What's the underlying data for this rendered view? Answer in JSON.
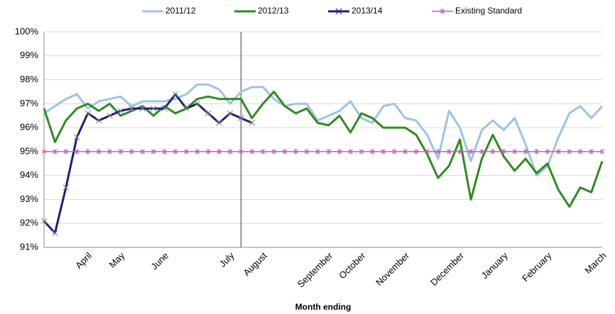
{
  "chart_data": {
    "type": "line",
    "x_label": "Month ending",
    "categories": [
      null,
      null,
      null,
      null,
      "April",
      null,
      null,
      "May",
      null,
      null,
      null,
      "June",
      null,
      null,
      null,
      null,
      null,
      "July",
      null,
      null,
      "August",
      null,
      null,
      null,
      null,
      null,
      "September",
      null,
      null,
      "October",
      null,
      null,
      null,
      "November",
      null,
      null,
      null,
      null,
      "December",
      null,
      null,
      null,
      "January",
      null,
      null,
      null,
      "February",
      null,
      null,
      null,
      null,
      "March"
    ],
    "ylim": [
      91,
      100
    ],
    "yticks": [
      {
        "value": 91,
        "label": "91%"
      },
      {
        "value": 92,
        "label": "92%"
      },
      {
        "value": 93,
        "label": "93%"
      },
      {
        "value": 94,
        "label": "94%"
      },
      {
        "value": 95,
        "label": "95%"
      },
      {
        "value": 96,
        "label": "96%"
      },
      {
        "value": 97,
        "label": "97%"
      },
      {
        "value": 98,
        "label": "98%"
      },
      {
        "value": 99,
        "label": "99%"
      },
      {
        "value": 100,
        "label": "100%"
      }
    ],
    "grid": true,
    "legend": "top",
    "series": [
      {
        "name": "2011/12",
        "color": "#9dc3e6",
        "marker": "none",
        "values": [
          96.6,
          96.9,
          97.2,
          97.4,
          96.8,
          97.1,
          97.2,
          97.3,
          96.9,
          97.1,
          97.1,
          97.1,
          97.2,
          97.4,
          97.8,
          97.8,
          97.6,
          97.0,
          97.5,
          97.7,
          97.7,
          97.2,
          96.9,
          97.0,
          97.0,
          96.3,
          96.5,
          96.7,
          97.1,
          96.4,
          96.2,
          96.9,
          97.0,
          96.4,
          96.3,
          95.7,
          94.7,
          96.7,
          96.0,
          94.6,
          95.9,
          96.3,
          95.9,
          96.4,
          95.3,
          94.0,
          94.4,
          95.6,
          96.6,
          96.9,
          96.4,
          96.9
        ]
      },
      {
        "name": "2012/13",
        "color": "#2e8b1f",
        "marker": "none",
        "values": [
          96.8,
          95.4,
          96.3,
          96.8,
          97.0,
          96.7,
          97.0,
          96.5,
          96.7,
          96.9,
          96.5,
          96.9,
          96.6,
          96.8,
          97.2,
          97.3,
          97.2,
          97.2,
          97.2,
          96.4,
          97.0,
          97.5,
          96.9,
          96.6,
          96.8,
          96.2,
          96.1,
          96.5,
          95.8,
          96.6,
          96.4,
          96.0,
          96.0,
          96.0,
          95.7,
          94.9,
          93.9,
          94.4,
          95.5,
          93.0,
          94.7,
          95.7,
          94.8,
          94.2,
          94.7,
          94.1,
          94.5,
          93.4,
          92.7,
          93.5,
          93.3,
          94.6
        ]
      },
      {
        "name": "2013/14",
        "color": "#1f1f7a",
        "marker": "x",
        "values": [
          92.1,
          91.6,
          93.5,
          95.6,
          96.6,
          96.3,
          96.5,
          96.7,
          96.8,
          96.8,
          96.8,
          96.8,
          97.4,
          96.8,
          97.0,
          96.6,
          96.2,
          96.6,
          96.4,
          96.2,
          null,
          null,
          null,
          null,
          null,
          null,
          null,
          null,
          null,
          null,
          null,
          null,
          null,
          null,
          null,
          null,
          null,
          null,
          null,
          null,
          null,
          null,
          null,
          null,
          null,
          null,
          null,
          null,
          null,
          null,
          null,
          null
        ]
      },
      {
        "name": "Existing Standard",
        "color": "#c060b0",
        "marker": "star",
        "values": [
          95,
          95,
          95,
          95,
          95,
          95,
          95,
          95,
          95,
          95,
          95,
          95,
          95,
          95,
          95,
          95,
          95,
          95,
          95,
          95,
          95,
          95,
          95,
          95,
          95,
          95,
          95,
          95,
          95,
          95,
          95,
          95,
          95,
          95,
          95,
          95,
          95,
          95,
          95,
          95,
          95,
          95,
          95,
          95,
          95,
          95,
          95,
          95,
          95,
          95,
          95,
          95
        ]
      }
    ]
  }
}
